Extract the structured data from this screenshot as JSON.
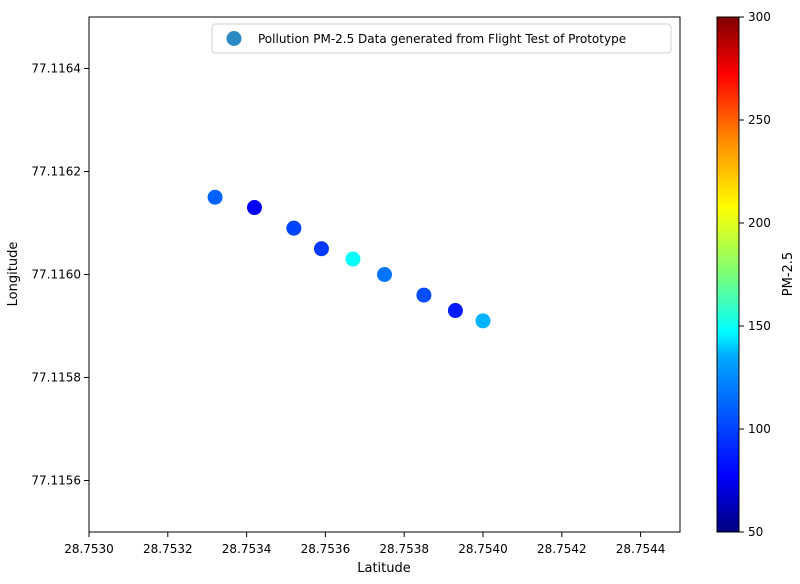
{
  "chart_data": {
    "type": "scatter",
    "title": "",
    "xlabel": "Latitude",
    "ylabel": "Longitude",
    "xlim": [
      28.753,
      28.7545
    ],
    "ylim": [
      77.1155,
      77.1165
    ],
    "xticks": [
      "28.7530",
      "28.7532",
      "28.7534",
      "28.7536",
      "28.7538",
      "28.7540",
      "28.7542",
      "28.7544"
    ],
    "yticks": [
      "77.1156",
      "77.1158",
      "77.1160",
      "77.1162",
      "77.1164"
    ],
    "grid": false,
    "legend": {
      "placement": "top-right",
      "label": "Pollution PM-2.5 Data generated from Flight Test of Prototype",
      "marker_color": "#2b8ac4"
    },
    "colorbar": {
      "label": "PM-2.5",
      "min": 50,
      "max": 300,
      "ticks": [
        "50",
        "100",
        "150",
        "200",
        "250",
        "300"
      ],
      "colormap": "jet"
    },
    "series": [
      {
        "points": [
          {
            "x": 28.75332,
            "y": 77.11615,
            "value": 105
          },
          {
            "x": 28.75342,
            "y": 77.11613,
            "value": 80
          },
          {
            "x": 28.75352,
            "y": 77.11609,
            "value": 98
          },
          {
            "x": 28.75359,
            "y": 77.11605,
            "value": 95
          },
          {
            "x": 28.75367,
            "y": 77.11603,
            "value": 145
          },
          {
            "x": 28.75375,
            "y": 77.116,
            "value": 110
          },
          {
            "x": 28.75385,
            "y": 77.11596,
            "value": 100
          },
          {
            "x": 28.75393,
            "y": 77.11593,
            "value": 88
          },
          {
            "x": 28.754,
            "y": 77.11591,
            "value": 125
          }
        ]
      }
    ]
  }
}
